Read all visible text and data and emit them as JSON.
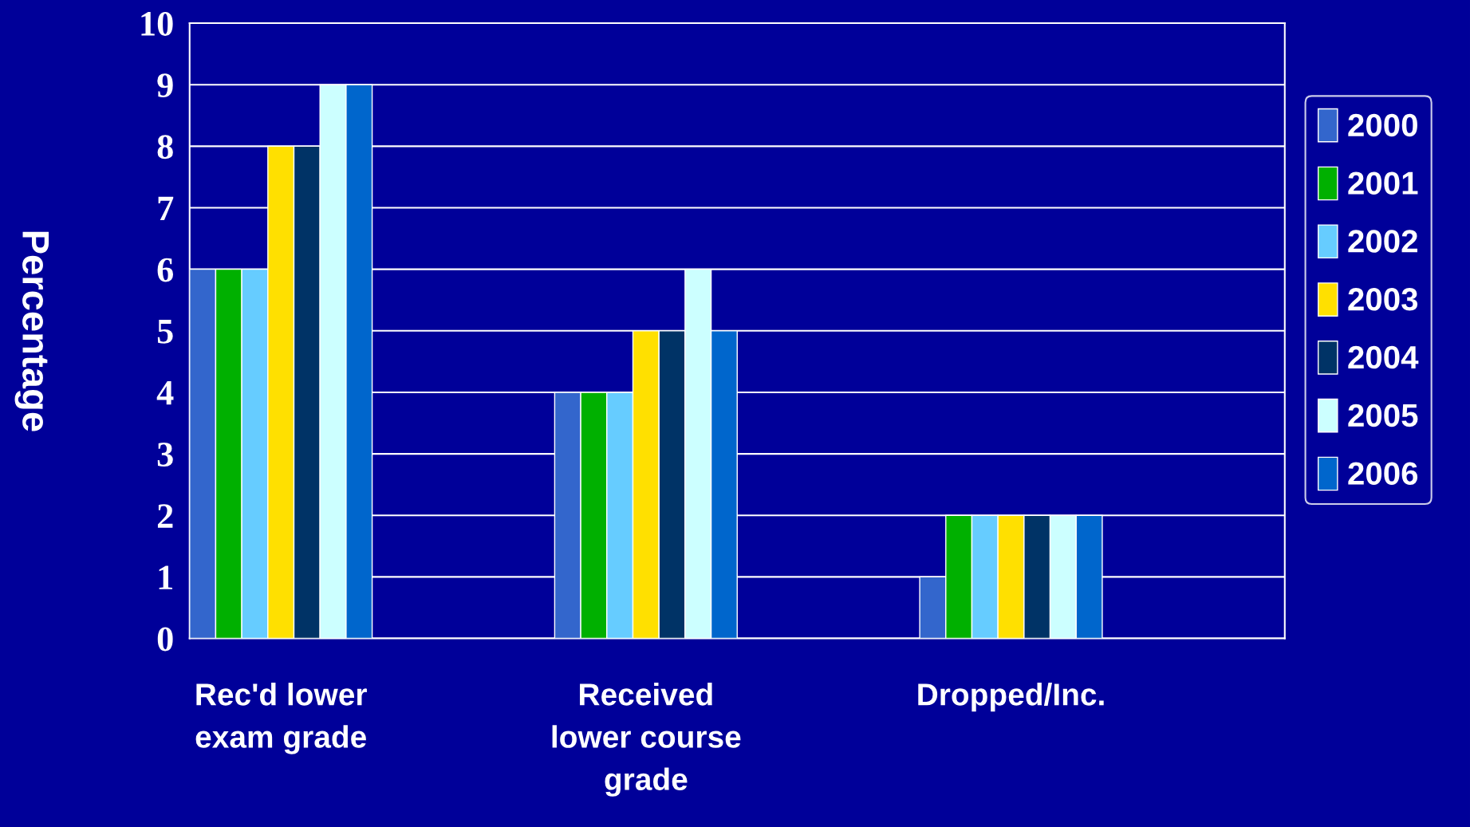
{
  "chart_data": {
    "type": "bar",
    "ylabel": "Percentage",
    "categories": [
      "Rec'd lower\nexam grade",
      "Received\nlower course\ngrade",
      "Dropped/Inc."
    ],
    "series": [
      {
        "name": "2000",
        "color": "#3366cc",
        "values": [
          6,
          4,
          1
        ]
      },
      {
        "name": "2001",
        "color": "#00b000",
        "values": [
          6,
          4,
          2
        ]
      },
      {
        "name": "2002",
        "color": "#66ccff",
        "values": [
          6,
          4,
          2
        ]
      },
      {
        "name": "2003",
        "color": "#ffe000",
        "values": [
          8,
          5,
          2
        ]
      },
      {
        "name": "2004",
        "color": "#003366",
        "values": [
          8,
          5,
          2
        ]
      },
      {
        "name": "2005",
        "color": "#ccffff",
        "values": [
          9,
          6,
          2
        ]
      },
      {
        "name": "2006",
        "color": "#0066cc",
        "values": [
          9,
          5,
          2
        ]
      }
    ],
    "ylim": [
      0,
      10
    ],
    "yticks": [
      0,
      1,
      2,
      3,
      4,
      5,
      6,
      7,
      8,
      9,
      10
    ],
    "grid": "y",
    "legend": "right"
  }
}
